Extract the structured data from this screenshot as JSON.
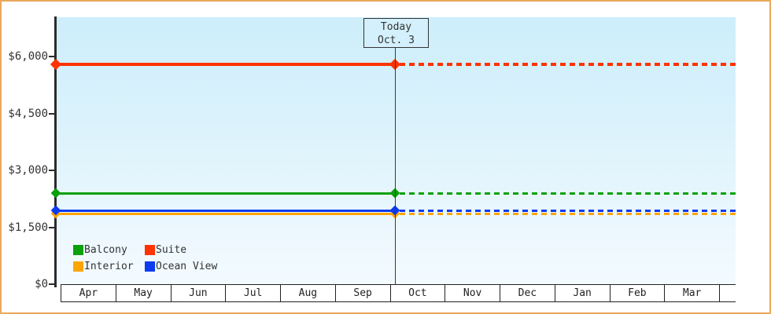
{
  "window": {
    "background": "#ffffff",
    "frame_border_color": "#eaa95c"
  },
  "chart_data": {
    "type": "line",
    "title": "",
    "xlabel": "",
    "ylabel": "",
    "categories": [
      "Apr",
      "May",
      "Jun",
      "Jul",
      "Aug",
      "Sep",
      "Oct",
      "Nov",
      "Dec",
      "Jan",
      "Feb",
      "Mar"
    ],
    "y_axis": {
      "min": 0,
      "max": 7030,
      "ticks": [
        {
          "label": "$6,000",
          "value": 6000
        },
        {
          "label": "$4,500",
          "value": 4500
        },
        {
          "label": "$3,000",
          "value": 3000
        },
        {
          "label": "$1,500",
          "value": 1500
        },
        {
          "label": "$0",
          "value": 0
        }
      ]
    },
    "series": [
      {
        "name": "Suite",
        "color": "#ff3300",
        "value": 5800,
        "thickness": 4
      },
      {
        "name": "Balcony",
        "color": "#0aa10a",
        "value": 2400,
        "thickness": 3
      },
      {
        "name": "Interior",
        "color": "#ffa500",
        "value": 1860,
        "thickness": 3
      },
      {
        "name": "Ocean View",
        "color": "#0c3bf0",
        "value": 1950,
        "thickness": 3
      }
    ],
    "series_style": {
      "flat_constant_lines": true,
      "solid_before_today": true,
      "dashed_after_today": true,
      "marker": "diamond",
      "plot_bg_top": "#cdeefb",
      "plot_bg_bottom": "#f3fbff",
      "grid": false
    },
    "today_annotation": {
      "line1": "Today",
      "line2": "Oct. 3",
      "x_fraction_of_plot": 0.499
    },
    "legend": {
      "position": "bottom-left-inside",
      "items": [
        {
          "label": "Balcony",
          "color": "#0aa10a"
        },
        {
          "label": "Suite",
          "color": "#ff3300"
        },
        {
          "label": "Interior",
          "color": "#ffa500"
        },
        {
          "label": "Ocean View",
          "color": "#0c3bf0"
        }
      ]
    }
  }
}
